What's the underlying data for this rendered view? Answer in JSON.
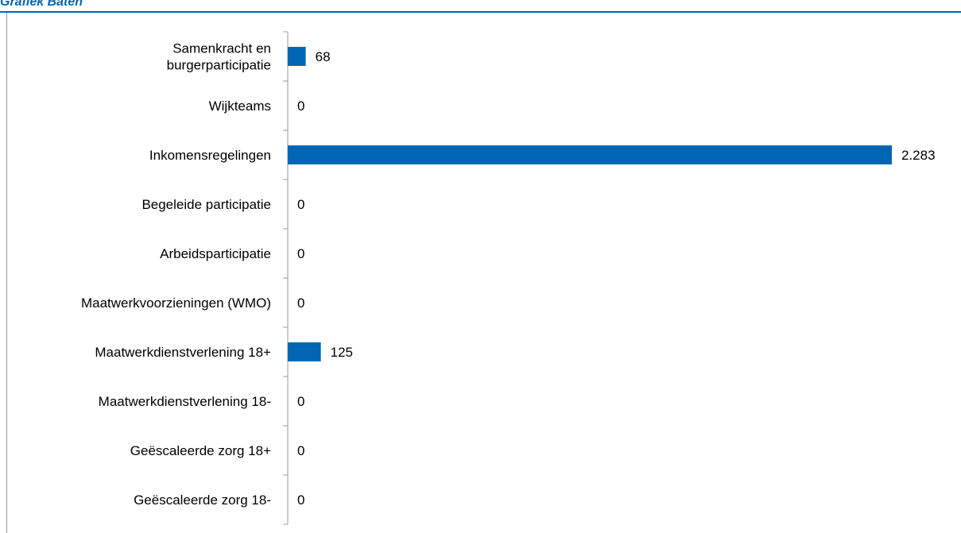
{
  "header": {
    "title": "Grafiek Baten"
  },
  "chart_data": {
    "type": "bar",
    "orientation": "horizontal",
    "categories": [
      [
        "Samenkracht en",
        "burgerparticipatie"
      ],
      [
        "Wijkteams"
      ],
      [
        "Inkomensregelingen"
      ],
      [
        "Begeleide participatie"
      ],
      [
        "Arbeidsparticipatie"
      ],
      [
        "Maatwerkvoorzieningen (WMO)"
      ],
      [
        "Maatwerkdienstverlening 18+"
      ],
      [
        "Maatwerkdienstverlening 18-"
      ],
      [
        "Geëscaleerde zorg 18+"
      ],
      [
        "Geëscaleerde zorg 18-"
      ]
    ],
    "values": [
      68,
      0,
      2283,
      0,
      0,
      0,
      125,
      0,
      0,
      0
    ],
    "value_labels": [
      "68",
      "0",
      "2.283",
      "0",
      "0",
      "0",
      "125",
      "0",
      "0",
      "0"
    ],
    "xlim": [
      0,
      2283
    ],
    "bar_color": "#0066b3",
    "axis_color": "#9a9a9a",
    "grid": false,
    "legend": false
  }
}
